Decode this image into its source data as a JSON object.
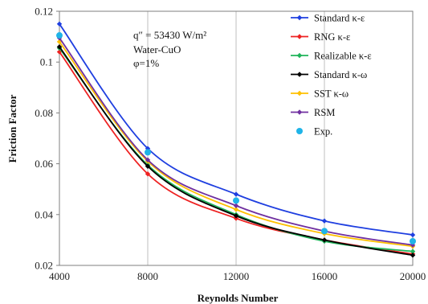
{
  "chart_data": {
    "type": "line",
    "xlabel": "Reynolds Number",
    "ylabel": "Friction Factor",
    "xlim": [
      4000,
      20000
    ],
    "ylim": [
      0.02,
      0.12
    ],
    "x_ticks": [
      "4000",
      "8000",
      "12000",
      "16000",
      "20000"
    ],
    "y_ticks": [
      "0.02",
      "0.04",
      "0.06",
      "0.08",
      "0.1",
      "0.12"
    ],
    "grid": "vertical",
    "legend_position": "top-right",
    "annotations": [
      "q″ = 53430 W/m²",
      "Water-CuO",
      "φ=1%"
    ],
    "x": [
      4000,
      8000,
      12000,
      16000,
      20000
    ],
    "series": [
      {
        "name": "Standard κ-ε",
        "color": "#1f3fe0",
        "marker": "diamond",
        "values": [
          0.115,
          0.066,
          0.048,
          0.0375,
          0.032
        ]
      },
      {
        "name": "RNG κ-ε",
        "color": "#ee2222",
        "marker": "diamond",
        "values": [
          0.104,
          0.056,
          0.0385,
          0.03,
          0.0245
        ]
      },
      {
        "name": "Realizable κ-ε",
        "color": "#1fb45a",
        "marker": "diamond",
        "values": [
          0.1055,
          0.0595,
          0.04,
          0.0295,
          0.0255
        ]
      },
      {
        "name": "Standard κ-ω",
        "color": "#000000",
        "marker": "diamond",
        "values": [
          0.106,
          0.059,
          0.0395,
          0.03,
          0.024
        ]
      },
      {
        "name": "SST κ-ω",
        "color": "#ffc000",
        "marker": "diamond",
        "values": [
          0.108,
          0.061,
          0.042,
          0.0325,
          0.0275
        ]
      },
      {
        "name": "RSM",
        "color": "#7030a0",
        "marker": "diamond",
        "values": [
          0.1095,
          0.0615,
          0.0435,
          0.0335,
          0.028
        ]
      },
      {
        "name": "Exp.",
        "color": "#1fb4e8",
        "marker": "circle",
        "values": [
          0.1105,
          0.0645,
          0.0455,
          0.0335,
          0.0295
        ]
      }
    ]
  }
}
